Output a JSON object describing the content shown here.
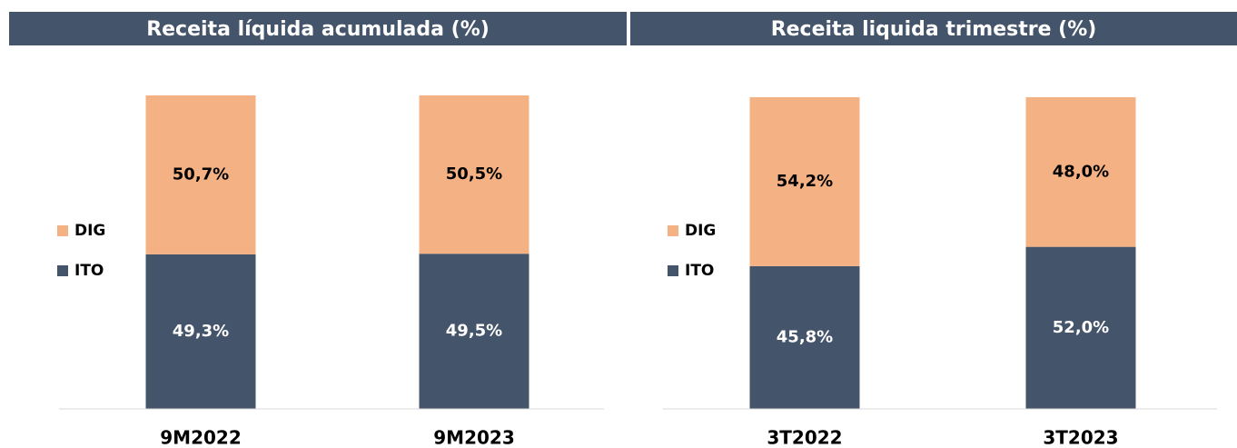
{
  "chart_data": [
    {
      "type": "stacked-bar",
      "title": "Receita líquida acumulada (%)",
      "categories": [
        "9M2022",
        "9M2023"
      ],
      "series": [
        {
          "name": "ITO",
          "color": "#44546a",
          "values": [
            49.3,
            49.5
          ],
          "value_labels": [
            "49,3%",
            "49,5%"
          ]
        },
        {
          "name": "DIG",
          "color": "#f4b183",
          "values": [
            50.7,
            50.5
          ],
          "value_labels": [
            "50,7%",
            "50,5%"
          ]
        }
      ],
      "ylim": [
        0,
        100
      ]
    },
    {
      "type": "stacked-bar",
      "title": "Receita liquida trimestre (%)",
      "categories": [
        "3T2022",
        "3T2023"
      ],
      "series": [
        {
          "name": "ITO",
          "color": "#44546a",
          "values": [
            45.8,
            52.0
          ],
          "value_labels": [
            "45,8%",
            "52,0%"
          ]
        },
        {
          "name": "DIG",
          "color": "#f4b183",
          "values": [
            54.2,
            48.0
          ],
          "value_labels": [
            "54,2%",
            "48,0%"
          ]
        }
      ],
      "ylim": [
        0,
        100
      ]
    }
  ]
}
